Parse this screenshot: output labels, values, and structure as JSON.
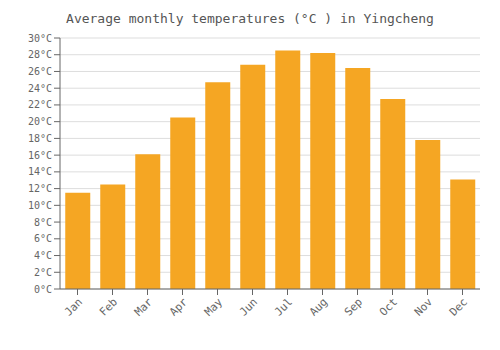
{
  "chart_data": {
    "type": "bar",
    "title": "Average monthly temperatures (°C ) in Yingcheng",
    "categories": [
      "Jan",
      "Feb",
      "Mar",
      "Apr",
      "May",
      "Jun",
      "Jul",
      "Aug",
      "Sep",
      "Oct",
      "Nov",
      "Dec"
    ],
    "values": [
      11.5,
      12.5,
      16.1,
      20.5,
      24.7,
      26.8,
      28.5,
      28.2,
      26.4,
      22.7,
      17.8,
      13.1
    ],
    "color": "#F5A623",
    "ylim": [
      0,
      30
    ],
    "yticks": [
      {
        "value": 0,
        "label": "0°C"
      },
      {
        "value": 2,
        "label": "2°C"
      },
      {
        "value": 4,
        "label": "4°C"
      },
      {
        "value": 6,
        "label": "6°C"
      },
      {
        "value": 8,
        "label": "8°C"
      },
      {
        "value": 10,
        "label": "10°C"
      },
      {
        "value": 12,
        "label": "12°C"
      },
      {
        "value": 14,
        "label": "14°C"
      },
      {
        "value": 16,
        "label": "16°C"
      },
      {
        "value": 18,
        "label": "18°C"
      },
      {
        "value": 20,
        "label": "20°C"
      },
      {
        "value": 22,
        "label": "22°C"
      },
      {
        "value": 24,
        "label": "24°C"
      },
      {
        "value": 26,
        "label": "26°C"
      },
      {
        "value": 28,
        "label": "28°C"
      },
      {
        "value": 30,
        "label": "30°C"
      }
    ],
    "grid": true
  }
}
